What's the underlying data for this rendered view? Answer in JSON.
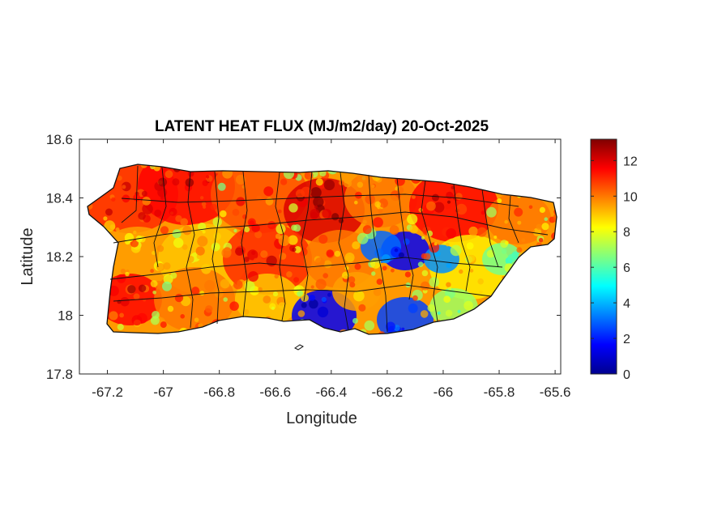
{
  "chart_data": {
    "type": "heatmap",
    "title": "LATENT HEAT FLUX (MJ/m2/day) 20-Oct-2025",
    "xlabel": "Longitude",
    "ylabel": "Latitude",
    "xlim": [
      -67.3,
      -65.58
    ],
    "ylim": [
      17.8,
      18.6
    ],
    "x_ticks": [
      -67.2,
      -67,
      -66.8,
      -66.6,
      -66.4,
      -66.2,
      -66,
      -65.8,
      -65.6
    ],
    "x_tick_labels": [
      "-67.2",
      "-67",
      "-66.8",
      "-66.6",
      "-66.4",
      "-66.2",
      "-66",
      "-65.8",
      "-65.6"
    ],
    "y_ticks": [
      17.8,
      18,
      18.2,
      18.4,
      18.6
    ],
    "y_tick_labels": [
      "17.8",
      "18",
      "18.2",
      "18.4",
      "18.6"
    ],
    "colorbar": {
      "range": [
        0,
        13.2
      ],
      "ticks": [
        0,
        2,
        4,
        6,
        8,
        10,
        12
      ],
      "tick_labels": [
        "0",
        "2",
        "4",
        "6",
        "8",
        "10",
        "12"
      ],
      "colormap": "jet"
    },
    "grid": false,
    "region": "Puerto Rico"
  }
}
